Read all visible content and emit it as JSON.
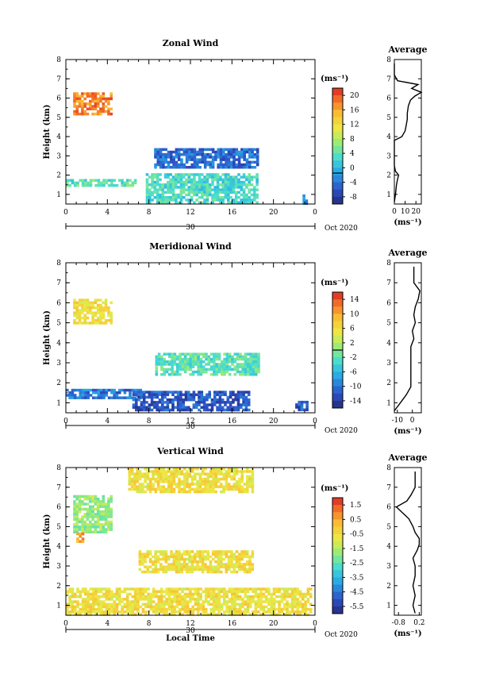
{
  "figure": {
    "date_label": "Oct 2020",
    "day_label": "30",
    "xlabel": "Local Time",
    "ylabel": "Height (km)",
    "unit_label": "(ms⁻¹)",
    "avg_unit_label": "(ms⁻¹)",
    "avg_title": "Average"
  },
  "chart_data": [
    {
      "type": "heatmap",
      "title": "Zonal Wind",
      "xlabel": "",
      "ylabel": "Height (km)",
      "xlim": [
        0,
        24
      ],
      "ylim": [
        0.5,
        8
      ],
      "xticks": [
        "0",
        "4",
        "8",
        "12",
        "16",
        "20",
        "0"
      ],
      "yticks": [
        "1",
        "2",
        "3",
        "4",
        "5",
        "6",
        "7",
        "8"
      ],
      "colorbar": {
        "label": "(ms⁻¹)",
        "min": -8,
        "max": 22,
        "ticks": [
          "20",
          "16",
          "12",
          "8",
          "4",
          "0",
          "-4",
          "-8"
        ],
        "zero_line": 0
      },
      "regions": [
        {
          "x": [
            0.7,
            4.3
          ],
          "y": [
            5.2,
            6.3
          ],
          "value": 18
        },
        {
          "x": [
            0.0,
            6.6
          ],
          "y": [
            1.5,
            1.8
          ],
          "value": 5
        },
        {
          "x": [
            7.7,
            18.3
          ],
          "y": [
            0.6,
            2.1
          ],
          "value": 4
        },
        {
          "x": [
            8.5,
            18.5
          ],
          "y": [
            2.4,
            3.4
          ],
          "value": -3
        },
        {
          "x": [
            22.8,
            23.3
          ],
          "y": [
            0.6,
            1.0
          ],
          "value": -2
        }
      ],
      "average_profile": {
        "xlim": [
          0,
          25
        ],
        "xticks": [
          "0",
          "10",
          "20"
        ],
        "height": [
          0.6,
          1.0,
          1.5,
          1.8,
          2.0,
          2.2,
          2.5,
          3.0,
          3.5,
          3.8,
          4.0,
          4.3,
          4.6,
          4.9,
          5.2,
          5.6,
          5.9,
          6.1,
          6.3,
          6.5,
          6.7,
          6.9,
          7.2,
          7.8
        ],
        "value": [
          0,
          1,
          2,
          3,
          4,
          1,
          0,
          0,
          0,
          0,
          7,
          10,
          11,
          12,
          12,
          13,
          15,
          19,
          25,
          16,
          22,
          3,
          0,
          0
        ]
      }
    },
    {
      "type": "heatmap",
      "title": "Meridional Wind",
      "xlabel": "",
      "ylabel": "Height (km)",
      "xlim": [
        0,
        24
      ],
      "ylim": [
        0.5,
        8
      ],
      "xticks": [
        "0",
        "4",
        "8",
        "12",
        "16",
        "20",
        "0"
      ],
      "yticks": [
        "1",
        "2",
        "3",
        "4",
        "5",
        "6",
        "7",
        "8"
      ],
      "colorbar": {
        "label": "(ms⁻¹)",
        "min": -16,
        "max": 16,
        "ticks": [
          "14",
          "10",
          "6",
          "2",
          "-2",
          "-6",
          "-10",
          "-14"
        ],
        "zero_line": 0
      },
      "regions": [
        {
          "x": [
            0.7,
            4.3
          ],
          "y": [
            5.0,
            6.2
          ],
          "value": 6
        },
        {
          "x": [
            8.6,
            18.5
          ],
          "y": [
            2.4,
            3.5
          ],
          "value": -2
        },
        {
          "x": [
            0.0,
            7.2
          ],
          "y": [
            1.2,
            1.7
          ],
          "value": -10
        },
        {
          "x": [
            6.4,
            17.6
          ],
          "y": [
            0.6,
            1.6
          ],
          "value": -12
        },
        {
          "x": [
            22.1,
            23.3
          ],
          "y": [
            0.7,
            1.1
          ],
          "value": -12
        }
      ],
      "average_profile": {
        "xlim": [
          -12,
          6
        ],
        "xticks": [
          "-10",
          "0"
        ],
        "height": [
          0.6,
          1.0,
          1.4,
          1.8,
          2.2,
          2.6,
          3.0,
          3.4,
          3.8,
          4.2,
          4.6,
          5.0,
          5.4,
          5.8,
          6.2,
          6.6,
          7.0,
          7.4,
          7.8
        ],
        "value": [
          -12,
          -8,
          -4,
          -1,
          -1,
          -1,
          -1,
          -1,
          -1,
          1,
          0,
          2,
          1,
          2,
          4,
          5,
          1,
          1,
          1
        ]
      }
    },
    {
      "type": "heatmap",
      "title": "Vertical Wind",
      "xlabel": "Local Time",
      "ylabel": "Height (km)",
      "xlim": [
        0,
        24
      ],
      "ylim": [
        0.5,
        8
      ],
      "xticks": [
        "0",
        "4",
        "8",
        "12",
        "16",
        "20",
        "0"
      ],
      "yticks": [
        "1",
        "2",
        "3",
        "4",
        "5",
        "6",
        "7",
        "8"
      ],
      "colorbar": {
        "label": "(ms⁻¹)",
        "min": -6,
        "max": 2,
        "ticks": [
          "1.5",
          "0.5",
          "-0.5",
          "-1.5",
          "-2.5",
          "-3.5",
          "-4.5",
          "-5.5"
        ]
      },
      "regions": [
        {
          "x": [
            0.7,
            4.3
          ],
          "y": [
            4.7,
            6.6
          ],
          "value": -1.8
        },
        {
          "x": [
            1.0,
            1.6
          ],
          "y": [
            4.2,
            4.7
          ],
          "value": 0.5
        },
        {
          "x": [
            7.0,
            18.0
          ],
          "y": [
            2.7,
            3.8
          ],
          "value": -0.6
        },
        {
          "x": [
            0.0,
            23.7
          ],
          "y": [
            0.6,
            1.9
          ],
          "value": -0.6
        },
        {
          "x": [
            6.0,
            18.0
          ],
          "y": [
            6.8,
            8.0
          ],
          "value": -0.6
        }
      ],
      "average_profile": {
        "xlim": [
          -1.0,
          0.3
        ],
        "xticks": [
          "-0.8",
          "0.2"
        ],
        "height": [
          0.6,
          1.0,
          1.5,
          2.0,
          2.5,
          3.0,
          3.4,
          3.8,
          4.1,
          4.4,
          4.7,
          5.0,
          5.4,
          5.8,
          6.0,
          6.3,
          6.6,
          7.0,
          7.4,
          7.8
        ],
        "value": [
          0.0,
          -0.1,
          0.0,
          -0.1,
          0.0,
          0.0,
          -0.1,
          0.1,
          0.2,
          0.2,
          0.0,
          -0.1,
          -0.3,
          -0.7,
          -0.9,
          -0.4,
          -0.2,
          0.0,
          0.0,
          0.0
        ]
      }
    }
  ]
}
